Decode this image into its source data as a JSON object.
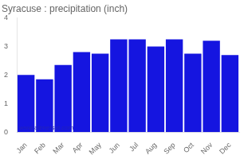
{
  "chart_data": {
    "type": "bar",
    "title": "Syracuse : precipitation (inch)",
    "categories": [
      "Jan",
      "Feb",
      "Mar",
      "Apr",
      "May",
      "Jun",
      "Jul",
      "Aug",
      "Sep",
      "Oct",
      "Nov",
      "Dec"
    ],
    "values": [
      2.0,
      1.85,
      2.35,
      2.8,
      2.75,
      3.25,
      3.25,
      3.0,
      3.25,
      2.75,
      3.2,
      2.7
    ],
    "color": "#1515e0",
    "ylim": [
      0,
      4
    ],
    "yticks": [
      0,
      1,
      2,
      3,
      4
    ],
    "grid": false,
    "annotations": [
      {
        "text": "www.allmetsat.com",
        "color": "#2222bb"
      }
    ]
  }
}
